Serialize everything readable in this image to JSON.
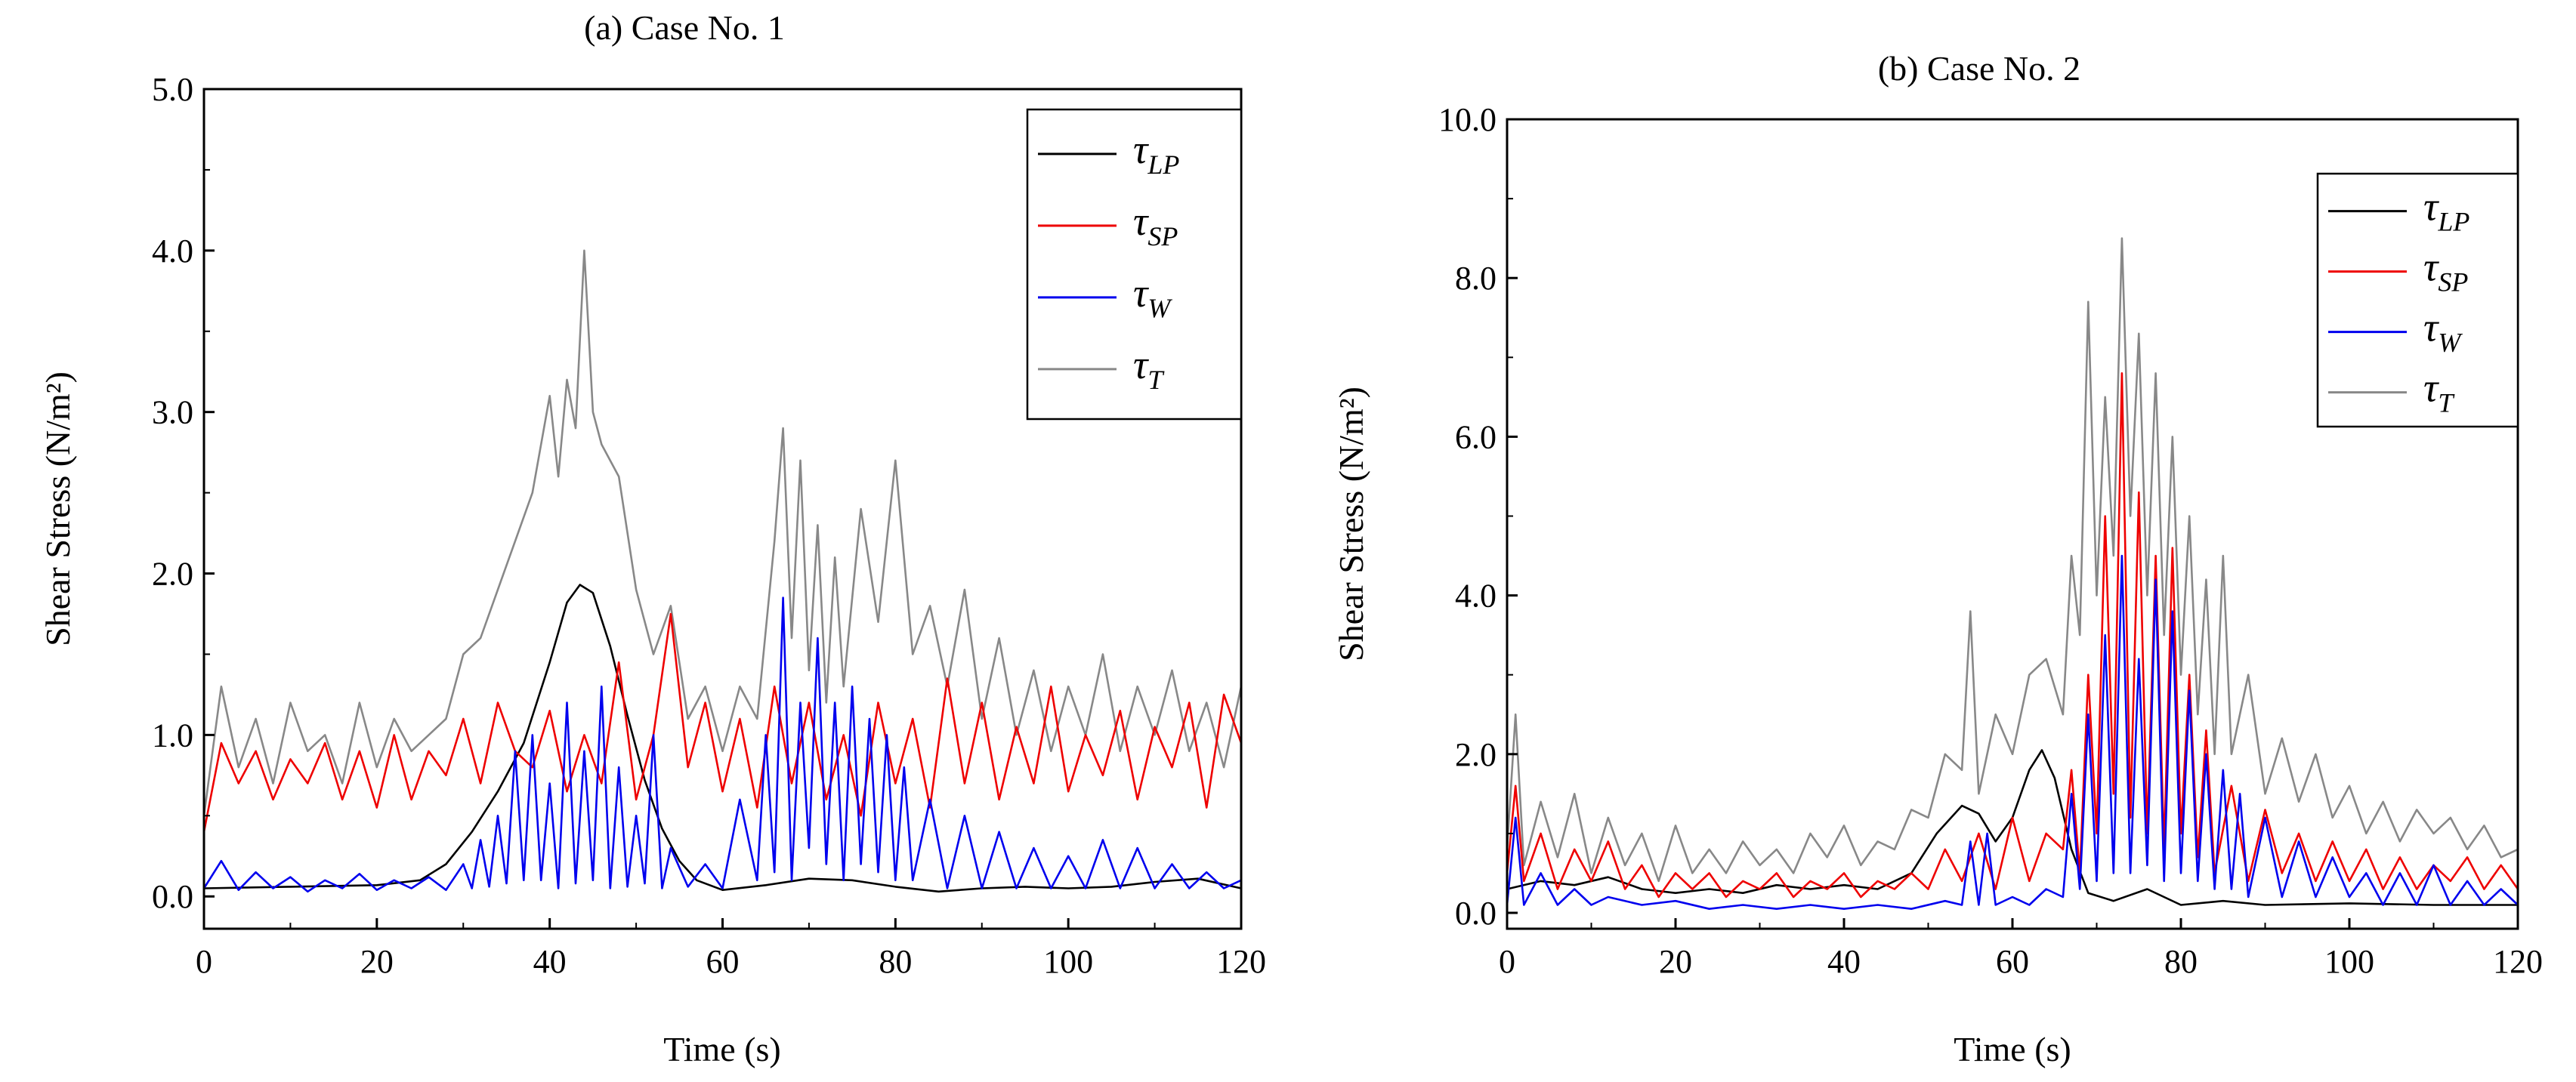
{
  "chart_data": [
    {
      "type": "line",
      "title": "(a) Case No. 1",
      "xlabel": "Time (s)",
      "ylabel": "Shear Stress (N/m²)",
      "xlim": [
        0,
        120
      ],
      "ylim": [
        -0.2,
        5.0
      ],
      "xticks": [
        0,
        20,
        40,
        60,
        80,
        100,
        120
      ],
      "xtick_labels": [
        "0",
        "20",
        "40",
        "60",
        "80",
        "100",
        "120"
      ],
      "yticks": [
        0,
        1,
        2,
        3,
        4,
        5
      ],
      "ytick_labels": [
        "0.0",
        "1.0",
        "2.0",
        "3.0",
        "4.0",
        "5.0"
      ],
      "legend_position": "top-right",
      "series": [
        {
          "name": "τLP",
          "label_main": "τ",
          "label_sub": "LP",
          "color": "#000000",
          "x": [
            0,
            10,
            20,
            25,
            28,
            31,
            34,
            37,
            40,
            42,
            43.5,
            45,
            47,
            49,
            51,
            53,
            55,
            57,
            60,
            65,
            70,
            75,
            80,
            85,
            90,
            95,
            100,
            105,
            110,
            115,
            120
          ],
          "values": [
            0.05,
            0.06,
            0.07,
            0.1,
            0.2,
            0.4,
            0.65,
            0.95,
            1.45,
            1.82,
            1.93,
            1.88,
            1.55,
            1.12,
            0.72,
            0.42,
            0.22,
            0.1,
            0.04,
            0.07,
            0.11,
            0.1,
            0.06,
            0.03,
            0.05,
            0.06,
            0.05,
            0.06,
            0.09,
            0.11,
            0.05
          ]
        },
        {
          "name": "τSP",
          "label_main": "τ",
          "label_sub": "SP",
          "color": "#ee0000",
          "x": [
            0,
            2,
            4,
            6,
            8,
            10,
            12,
            14,
            16,
            18,
            20,
            22,
            24,
            26,
            28,
            30,
            32,
            34,
            36,
            38,
            40,
            42,
            44,
            46,
            48,
            50,
            52,
            54,
            56,
            58,
            60,
            62,
            64,
            66,
            68,
            70,
            72,
            74,
            76,
            78,
            80,
            82,
            84,
            86,
            88,
            90,
            92,
            94,
            96,
            98,
            100,
            102,
            104,
            106,
            108,
            110,
            112,
            114,
            116,
            118,
            120
          ],
          "values": [
            0.4,
            0.95,
            0.7,
            0.9,
            0.6,
            0.85,
            0.7,
            0.95,
            0.6,
            0.9,
            0.55,
            1.0,
            0.6,
            0.9,
            0.75,
            1.1,
            0.7,
            1.2,
            0.9,
            0.8,
            1.15,
            0.65,
            1.0,
            0.7,
            1.45,
            0.6,
            1.0,
            1.75,
            0.8,
            1.2,
            0.65,
            1.1,
            0.55,
            1.3,
            0.7,
            1.2,
            0.6,
            1.0,
            0.5,
            1.2,
            0.7,
            1.1,
            0.55,
            1.35,
            0.7,
            1.2,
            0.6,
            1.05,
            0.7,
            1.3,
            0.65,
            1.0,
            0.75,
            1.15,
            0.6,
            1.05,
            0.8,
            1.2,
            0.55,
            1.25,
            0.95
          ]
        },
        {
          "name": "τW",
          "label_main": "τ",
          "label_sub": "W",
          "color": "#0000ee",
          "x": [
            0,
            2,
            4,
            6,
            8,
            10,
            12,
            14,
            16,
            18,
            20,
            22,
            24,
            26,
            28,
            30,
            31,
            32,
            33,
            34,
            35,
            36,
            37,
            38,
            39,
            40,
            41,
            42,
            43,
            44,
            45,
            46,
            47,
            48,
            49,
            50,
            51,
            52,
            53,
            54,
            56,
            58,
            60,
            62,
            64,
            65,
            66,
            67,
            68,
            69,
            70,
            71,
            72,
            73,
            74,
            75,
            76,
            77,
            78,
            79,
            80,
            81,
            82,
            84,
            86,
            88,
            90,
            92,
            94,
            96,
            98,
            100,
            102,
            104,
            106,
            108,
            110,
            112,
            114,
            116,
            118,
            120
          ],
          "values": [
            0.05,
            0.22,
            0.04,
            0.15,
            0.05,
            0.12,
            0.03,
            0.1,
            0.05,
            0.14,
            0.04,
            0.1,
            0.05,
            0.12,
            0.04,
            0.2,
            0.05,
            0.35,
            0.06,
            0.5,
            0.08,
            0.9,
            0.1,
            1.0,
            0.1,
            0.7,
            0.05,
            1.2,
            0.08,
            0.9,
            0.1,
            1.3,
            0.05,
            0.8,
            0.06,
            0.5,
            0.08,
            1.0,
            0.05,
            0.3,
            0.06,
            0.2,
            0.05,
            0.6,
            0.1,
            1.0,
            0.15,
            1.85,
            0.1,
            1.2,
            0.3,
            1.6,
            0.2,
            1.2,
            0.1,
            1.3,
            0.2,
            1.1,
            0.15,
            1.0,
            0.1,
            0.8,
            0.1,
            0.6,
            0.05,
            0.5,
            0.05,
            0.4,
            0.05,
            0.3,
            0.05,
            0.25,
            0.05,
            0.35,
            0.05,
            0.3,
            0.05,
            0.2,
            0.05,
            0.15,
            0.05,
            0.1
          ]
        },
        {
          "name": "τT",
          "label_main": "τ",
          "label_sub": "T",
          "color": "#888888",
          "x": [
            0,
            2,
            4,
            6,
            8,
            10,
            12,
            14,
            16,
            18,
            20,
            22,
            24,
            26,
            28,
            30,
            32,
            34,
            36,
            38,
            40,
            41,
            42,
            43,
            44,
            45,
            46,
            48,
            50,
            52,
            54,
            56,
            58,
            60,
            62,
            64,
            66,
            67,
            68,
            69,
            70,
            71,
            72,
            73,
            74,
            76,
            78,
            80,
            82,
            84,
            86,
            88,
            90,
            92,
            94,
            96,
            98,
            100,
            102,
            104,
            106,
            108,
            110,
            112,
            114,
            116,
            118,
            120
          ],
          "values": [
            0.5,
            1.3,
            0.8,
            1.1,
            0.7,
            1.2,
            0.9,
            1.0,
            0.7,
            1.2,
            0.8,
            1.1,
            0.9,
            1.0,
            1.1,
            1.5,
            1.6,
            1.9,
            2.2,
            2.5,
            3.1,
            2.6,
            3.2,
            2.9,
            4.0,
            3.0,
            2.8,
            2.6,
            1.9,
            1.5,
            1.8,
            1.1,
            1.3,
            0.9,
            1.3,
            1.1,
            2.2,
            2.9,
            1.6,
            2.7,
            1.4,
            2.3,
            1.2,
            2.1,
            1.3,
            2.4,
            1.7,
            2.7,
            1.5,
            1.8,
            1.3,
            1.9,
            1.1,
            1.6,
            1.0,
            1.4,
            0.9,
            1.3,
            1.0,
            1.5,
            0.9,
            1.3,
            1.0,
            1.4,
            0.9,
            1.2,
            0.8,
            1.3
          ]
        }
      ]
    },
    {
      "type": "line",
      "title": "(b) Case No. 2",
      "xlabel": "Time (s)",
      "ylabel": "Shear Stress (N/m²)",
      "xlim": [
        0,
        120
      ],
      "ylim": [
        -0.2,
        10.0
      ],
      "xticks": [
        0,
        20,
        40,
        60,
        80,
        100,
        120
      ],
      "xtick_labels": [
        "0",
        "20",
        "40",
        "60",
        "80",
        "100",
        "120"
      ],
      "yticks": [
        0,
        2,
        4,
        6,
        8,
        10
      ],
      "ytick_labels": [
        "0.0",
        "2.0",
        "4.0",
        "6.0",
        "8.0",
        "10.0"
      ],
      "legend_position": "top-right",
      "series": [
        {
          "name": "τLP",
          "label_main": "τ",
          "label_sub": "LP",
          "color": "#000000",
          "x": [
            0,
            4,
            8,
            12,
            16,
            20,
            24,
            28,
            32,
            36,
            40,
            44,
            48,
            51,
            54,
            56,
            58,
            60,
            62,
            63.5,
            65,
            67,
            69,
            72,
            76,
            80,
            85,
            90,
            100,
            110,
            120
          ],
          "values": [
            0.3,
            0.4,
            0.35,
            0.45,
            0.3,
            0.25,
            0.3,
            0.25,
            0.35,
            0.3,
            0.35,
            0.3,
            0.5,
            1.0,
            1.35,
            1.25,
            0.9,
            1.2,
            1.8,
            2.05,
            1.7,
            0.8,
            0.25,
            0.15,
            0.3,
            0.1,
            0.15,
            0.1,
            0.12,
            0.1,
            0.1
          ]
        },
        {
          "name": "τSP",
          "label_main": "τ",
          "label_sub": "SP",
          "color": "#ee0000",
          "x": [
            0,
            1,
            2,
            4,
            6,
            8,
            10,
            12,
            14,
            16,
            18,
            20,
            22,
            24,
            26,
            28,
            30,
            32,
            34,
            36,
            38,
            40,
            42,
            44,
            46,
            48,
            50,
            52,
            54,
            56,
            58,
            60,
            62,
            64,
            66,
            67,
            68,
            69,
            70,
            71,
            72,
            73,
            74,
            75,
            76,
            77,
            78,
            79,
            80,
            81,
            82,
            83,
            84,
            86,
            88,
            90,
            92,
            94,
            96,
            98,
            100,
            102,
            104,
            106,
            108,
            110,
            112,
            114,
            116,
            118,
            120
          ],
          "values": [
            0.5,
            1.6,
            0.4,
            1.0,
            0.3,
            0.8,
            0.4,
            0.9,
            0.3,
            0.6,
            0.2,
            0.5,
            0.3,
            0.5,
            0.2,
            0.4,
            0.3,
            0.5,
            0.2,
            0.4,
            0.3,
            0.5,
            0.2,
            0.4,
            0.3,
            0.5,
            0.3,
            0.8,
            0.4,
            1.0,
            0.3,
            1.2,
            0.4,
            1.0,
            0.8,
            1.8,
            0.5,
            3.0,
            1.0,
            5.0,
            1.5,
            6.8,
            1.2,
            5.3,
            1.0,
            4.5,
            0.8,
            4.6,
            1.0,
            3.0,
            0.7,
            2.3,
            0.5,
            1.6,
            0.4,
            1.3,
            0.5,
            1.0,
            0.4,
            0.9,
            0.4,
            0.8,
            0.3,
            0.7,
            0.3,
            0.6,
            0.4,
            0.7,
            0.3,
            0.6,
            0.3
          ]
        },
        {
          "name": "τW",
          "label_main": "τ",
          "label_sub": "W",
          "color": "#0000ee",
          "x": [
            0,
            1,
            2,
            4,
            6,
            8,
            10,
            12,
            16,
            20,
            24,
            28,
            32,
            36,
            40,
            44,
            48,
            52,
            54,
            55,
            56,
            57,
            58,
            60,
            62,
            64,
            66,
            67,
            68,
            69,
            70,
            71,
            72,
            73,
            74,
            75,
            76,
            77,
            78,
            79,
            80,
            81,
            82,
            83,
            84,
            85,
            86,
            87,
            88,
            90,
            92,
            94,
            96,
            98,
            100,
            102,
            104,
            106,
            108,
            110,
            112,
            114,
            116,
            118,
            120
          ],
          "values": [
            0.1,
            1.2,
            0.1,
            0.5,
            0.1,
            0.3,
            0.1,
            0.2,
            0.1,
            0.15,
            0.05,
            0.1,
            0.05,
            0.1,
            0.05,
            0.1,
            0.05,
            0.15,
            0.1,
            0.9,
            0.1,
            1.0,
            0.1,
            0.2,
            0.1,
            0.3,
            0.2,
            1.5,
            0.3,
            2.5,
            0.4,
            3.5,
            0.5,
            4.5,
            0.5,
            3.2,
            0.6,
            4.2,
            0.4,
            3.8,
            0.5,
            2.8,
            0.4,
            2.0,
            0.3,
            1.8,
            0.3,
            1.5,
            0.2,
            1.2,
            0.2,
            0.9,
            0.2,
            0.7,
            0.2,
            0.5,
            0.1,
            0.5,
            0.1,
            0.6,
            0.1,
            0.4,
            0.1,
            0.3,
            0.1
          ]
        },
        {
          "name": "τT",
          "label_main": "τ",
          "label_sub": "T",
          "color": "#888888",
          "x": [
            0,
            1,
            2,
            4,
            6,
            8,
            10,
            12,
            14,
            16,
            18,
            20,
            22,
            24,
            26,
            28,
            30,
            32,
            34,
            36,
            38,
            40,
            42,
            44,
            46,
            48,
            50,
            52,
            54,
            55,
            56,
            58,
            60,
            62,
            64,
            66,
            67,
            68,
            69,
            70,
            71,
            72,
            73,
            74,
            75,
            76,
            77,
            78,
            79,
            80,
            81,
            82,
            83,
            84,
            85,
            86,
            88,
            90,
            92,
            94,
            96,
            98,
            100,
            102,
            104,
            106,
            108,
            110,
            112,
            114,
            116,
            118,
            120
          ],
          "values": [
            0.8,
            2.5,
            0.6,
            1.4,
            0.7,
            1.5,
            0.5,
            1.2,
            0.6,
            1.0,
            0.4,
            1.1,
            0.5,
            0.8,
            0.5,
            0.9,
            0.6,
            0.8,
            0.5,
            1.0,
            0.7,
            1.1,
            0.6,
            0.9,
            0.8,
            1.3,
            1.2,
            2.0,
            1.8,
            3.8,
            1.5,
            2.5,
            2.0,
            3.0,
            3.2,
            2.5,
            4.5,
            3.5,
            7.7,
            4.0,
            6.5,
            4.5,
            8.5,
            5.0,
            7.3,
            4.0,
            6.8,
            3.5,
            6.0,
            3.0,
            5.0,
            2.5,
            4.2,
            2.0,
            4.5,
            2.0,
            3.0,
            1.5,
            2.2,
            1.4,
            2.0,
            1.2,
            1.6,
            1.0,
            1.4,
            0.9,
            1.3,
            1.0,
            1.2,
            0.8,
            1.1,
            0.7,
            0.8
          ]
        }
      ]
    }
  ]
}
